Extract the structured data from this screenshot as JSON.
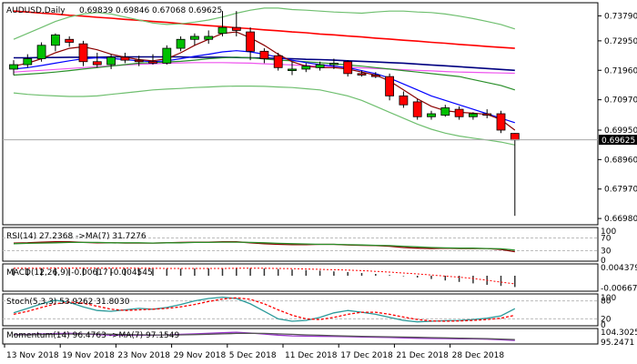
{
  "chart_data": {
    "type": "candlestick",
    "title": "AUDUSD,Daily",
    "ohlc_header": {
      "open": "0.69839",
      "high": "0.69846",
      "low": "0.67068",
      "close": "0.69625"
    },
    "price_axis": {
      "ticks": [
        "0.73790",
        "0.72950",
        "0.71960",
        "0.70970",
        "0.69950",
        "0.68960",
        "0.67970",
        "0.66980"
      ],
      "current_price": "0.69625",
      "ylim": [
        0.668,
        0.742
      ]
    },
    "x_labels": [
      "13 Nov 2018",
      "19 Nov 2018",
      "23 Nov 2018",
      "29 Nov 2018",
      "5 Dec 2018",
      "11 Dec 2018",
      "17 Dec 2018",
      "21 Dec 2018",
      "28 Dec 2018"
    ],
    "candles": [
      {
        "o": 0.72,
        "h": 0.723,
        "l": 0.718,
        "c": 0.7215
      },
      {
        "o": 0.7215,
        "h": 0.725,
        "l": 0.7205,
        "c": 0.7235
      },
      {
        "o": 0.7235,
        "h": 0.729,
        "l": 0.7225,
        "c": 0.728
      },
      {
        "o": 0.728,
        "h": 0.732,
        "l": 0.726,
        "c": 0.7315
      },
      {
        "o": 0.73,
        "h": 0.731,
        "l": 0.7275,
        "c": 0.729
      },
      {
        "o": 0.7285,
        "h": 0.7295,
        "l": 0.721,
        "c": 0.7225
      },
      {
        "o": 0.7225,
        "h": 0.7255,
        "l": 0.7205,
        "c": 0.7215
      },
      {
        "o": 0.7215,
        "h": 0.725,
        "l": 0.72,
        "c": 0.724
      },
      {
        "o": 0.724,
        "h": 0.7255,
        "l": 0.722,
        "c": 0.723
      },
      {
        "o": 0.723,
        "h": 0.7245,
        "l": 0.721,
        "c": 0.7225
      },
      {
        "o": 0.7225,
        "h": 0.725,
        "l": 0.7215,
        "c": 0.722
      },
      {
        "o": 0.722,
        "h": 0.728,
        "l": 0.7215,
        "c": 0.727
      },
      {
        "o": 0.727,
        "h": 0.731,
        "l": 0.726,
        "c": 0.73
      },
      {
        "o": 0.73,
        "h": 0.732,
        "l": 0.728,
        "c": 0.731
      },
      {
        "o": 0.73,
        "h": 0.733,
        "l": 0.7285,
        "c": 0.731
      },
      {
        "o": 0.732,
        "h": 0.7395,
        "l": 0.731,
        "c": 0.734
      },
      {
        "o": 0.734,
        "h": 0.7395,
        "l": 0.731,
        "c": 0.733
      },
      {
        "o": 0.7325,
        "h": 0.734,
        "l": 0.723,
        "c": 0.726
      },
      {
        "o": 0.726,
        "h": 0.727,
        "l": 0.722,
        "c": 0.7235
      },
      {
        "o": 0.7245,
        "h": 0.7255,
        "l": 0.7195,
        "c": 0.7205
      },
      {
        "o": 0.7195,
        "h": 0.7225,
        "l": 0.718,
        "c": 0.72
      },
      {
        "o": 0.72,
        "h": 0.722,
        "l": 0.719,
        "c": 0.721
      },
      {
        "o": 0.7205,
        "h": 0.7225,
        "l": 0.7195,
        "c": 0.7215
      },
      {
        "o": 0.7215,
        "h": 0.7235,
        "l": 0.72,
        "c": 0.722
      },
      {
        "o": 0.7225,
        "h": 0.723,
        "l": 0.7175,
        "c": 0.7185
      },
      {
        "o": 0.7185,
        "h": 0.7195,
        "l": 0.7175,
        "c": 0.718
      },
      {
        "o": 0.718,
        "h": 0.719,
        "l": 0.717,
        "c": 0.7175
      },
      {
        "o": 0.7175,
        "h": 0.7185,
        "l": 0.7095,
        "c": 0.711
      },
      {
        "o": 0.711,
        "h": 0.7125,
        "l": 0.707,
        "c": 0.708
      },
      {
        "o": 0.709,
        "h": 0.71,
        "l": 0.703,
        "c": 0.704
      },
      {
        "o": 0.704,
        "h": 0.706,
        "l": 0.703,
        "c": 0.705
      },
      {
        "o": 0.7045,
        "h": 0.708,
        "l": 0.704,
        "c": 0.707
      },
      {
        "o": 0.7065,
        "h": 0.7075,
        "l": 0.703,
        "c": 0.704
      },
      {
        "o": 0.704,
        "h": 0.7055,
        "l": 0.703,
        "c": 0.705
      },
      {
        "o": 0.705,
        "h": 0.7065,
        "l": 0.7035,
        "c": 0.7045
      },
      {
        "o": 0.705,
        "h": 0.706,
        "l": 0.6985,
        "c": 0.6995
      },
      {
        "o": 0.6984,
        "h": 0.6985,
        "l": 0.6707,
        "c": 0.6962
      }
    ],
    "overlays": [
      {
        "color": "#ff0000",
        "values": [
          0.7395,
          0.7392,
          0.7388,
          0.7385,
          0.7381,
          0.7378,
          0.7374,
          0.7371,
          0.7367,
          0.7364,
          0.736,
          0.7357,
          0.7353,
          0.735,
          0.7346,
          0.7343,
          0.7339,
          0.7336,
          0.7332,
          0.7329,
          0.7325,
          0.7322,
          0.7318,
          0.7315,
          0.7311,
          0.7308,
          0.7304,
          0.7301,
          0.7297,
          0.7294,
          0.729,
          0.7287,
          0.7283,
          0.728,
          0.7276,
          0.7273,
          0.727
        ]
      },
      {
        "color": "#000080",
        "values": [
          0.7238,
          0.7238,
          0.7239,
          0.7239,
          0.724,
          0.724,
          0.724,
          0.7241,
          0.7241,
          0.7241,
          0.7241,
          0.7241,
          0.7241,
          0.724,
          0.724,
          0.724,
          0.7239,
          0.7238,
          0.7237,
          0.7236,
          0.7235,
          0.7233,
          0.7232,
          0.723,
          0.7228,
          0.7226,
          0.7224,
          0.7222,
          0.722,
          0.7217,
          0.7214,
          0.7211,
          0.7208,
          0.7205,
          0.7202,
          0.7199,
          0.7196
        ]
      },
      {
        "color": "#ee55ee",
        "values": [
          0.719,
          0.7193,
          0.7196,
          0.7199,
          0.7202,
          0.7205,
          0.7208,
          0.7211,
          0.7214,
          0.7216,
          0.7218,
          0.722,
          0.7221,
          0.7222,
          0.7222,
          0.7222,
          0.7221,
          0.722,
          0.7218,
          0.7216,
          0.7214,
          0.7212,
          0.721,
          0.7208,
          0.7206,
          0.7204,
          0.7202,
          0.72,
          0.7198,
          0.7196,
          0.7194,
          0.7192,
          0.719,
          0.7189,
          0.7188,
          0.7187,
          0.7186
        ]
      },
      {
        "color": "#2a8f2a",
        "values": [
          0.718,
          0.7183,
          0.7186,
          0.719,
          0.7195,
          0.72,
          0.7205,
          0.721,
          0.7215,
          0.722,
          0.7222,
          0.7224,
          0.7226,
          0.723,
          0.7235,
          0.7238,
          0.724,
          0.7238,
          0.7234,
          0.723,
          0.7228,
          0.7225,
          0.7222,
          0.7218,
          0.7214,
          0.721,
          0.7205,
          0.72,
          0.7195,
          0.719,
          0.7185,
          0.718,
          0.7175,
          0.7165,
          0.7155,
          0.7145,
          0.713
        ]
      },
      {
        "color": "#0000ff",
        "values": [
          0.72,
          0.7205,
          0.7212,
          0.722,
          0.7228,
          0.7235,
          0.7238,
          0.7236,
          0.7232,
          0.7228,
          0.7225,
          0.7228,
          0.7235,
          0.7243,
          0.725,
          0.7258,
          0.7262,
          0.7258,
          0.725,
          0.724,
          0.723,
          0.7222,
          0.7215,
          0.721,
          0.7205,
          0.7195,
          0.7185,
          0.717,
          0.715,
          0.713,
          0.711,
          0.7095,
          0.708,
          0.7065,
          0.705,
          0.7035,
          0.702
        ]
      },
      {
        "color": "#8b0000",
        "values": [
          0.721,
          0.722,
          0.7235,
          0.7255,
          0.727,
          0.7275,
          0.7265,
          0.725,
          0.724,
          0.7232,
          0.7228,
          0.7235,
          0.7255,
          0.728,
          0.73,
          0.732,
          0.7325,
          0.7305,
          0.728,
          0.725,
          0.7225,
          0.721,
          0.7205,
          0.7205,
          0.72,
          0.719,
          0.718,
          0.716,
          0.713,
          0.71,
          0.7075,
          0.706,
          0.7055,
          0.7052,
          0.7048,
          0.703,
          0.6995
        ]
      },
      {
        "color": "#6fbf6f",
        "values": [
          0.73,
          0.732,
          0.734,
          0.736,
          0.7375,
          0.7385,
          0.739,
          0.7385,
          0.7375,
          0.7365,
          0.7355,
          0.735,
          0.7352,
          0.7358,
          0.7365,
          0.7375,
          0.7388,
          0.7398,
          0.7405,
          0.7405,
          0.74,
          0.7398,
          0.7395,
          0.7392,
          0.739,
          0.7388,
          0.7392,
          0.7395,
          0.7395,
          0.7392,
          0.739,
          0.7385,
          0.7378,
          0.737,
          0.736,
          0.735,
          0.7335
        ]
      },
      {
        "color": "#6fbf6f",
        "values": [
          0.712,
          0.7115,
          0.7112,
          0.711,
          0.7108,
          0.7108,
          0.711,
          0.7115,
          0.712,
          0.7125,
          0.713,
          0.7133,
          0.7135,
          0.7138,
          0.714,
          0.7142,
          0.7143,
          0.7143,
          0.7142,
          0.714,
          0.7138,
          0.7134,
          0.713,
          0.712,
          0.711,
          0.7095,
          0.7075,
          0.7055,
          0.7035,
          0.7015,
          0.6998,
          0.6985,
          0.6975,
          0.6968,
          0.6962,
          0.6955,
          0.6945
        ]
      }
    ],
    "panels": [
      {
        "label": "RSI(14) 27.2368 ->MA(7) 31.7276",
        "axis_labels": [
          "100",
          "70",
          "30",
          "0"
        ],
        "axis_values": [
          100,
          70,
          30,
          0
        ],
        "levels": [
          70,
          30
        ],
        "ylim": [
          0,
          100
        ],
        "series": [
          {
            "color": "#8b0000",
            "values": [
              54,
              55,
              57,
              58,
              58,
              56,
              55,
              55,
              54,
              54,
              54,
              55,
              56,
              57,
              57,
              58,
              58,
              55,
              52,
              50,
              49,
              49,
              50,
              50,
              48,
              47,
              46,
              44,
              40,
              38,
              37,
              38,
              37,
              37,
              37,
              34,
              27
            ]
          },
          {
            "color": "#2a8f2a",
            "values": [
              52,
              53,
              54,
              55,
              56,
              56,
              56,
              55,
              55,
              55,
              54,
              55,
              55,
              56,
              56,
              57,
              57,
              56,
              55,
              53,
              52,
              51,
              50,
              50,
              49,
              48,
              47,
              46,
              44,
              42,
              40,
              39,
              38,
              38,
              37,
              36,
              32
            ]
          }
        ]
      },
      {
        "label": "MACD(12,26,9) -0.00617 -0.004545",
        "axis_labels": [
          "0.004379",
          "-0.006673"
        ],
        "axis_values": [
          0.004379,
          -0.006673
        ],
        "ylim": [
          -0.008,
          0.006
        ],
        "bars": [
          0.004,
          0.0041,
          0.0042,
          0.0043,
          0.0043,
          0.0043,
          0.0042,
          0.0041,
          0.004,
          0.0039,
          0.0038,
          0.0038,
          0.0039,
          0.004,
          0.0041,
          0.0042,
          0.0043,
          0.0042,
          0.004,
          0.0037,
          0.0034,
          0.0031,
          0.0028,
          0.0024,
          0.002,
          0.0015,
          0.001,
          0.0004,
          -0.0003,
          -0.001,
          -0.0018,
          -0.0026,
          -0.0034,
          -0.0042,
          -0.005,
          -0.0056,
          -0.0062
        ],
        "signal": [
          0.0041,
          0.0041,
          0.0041,
          0.0042,
          0.0042,
          0.0042,
          0.0042,
          0.0042,
          0.0042,
          0.0041,
          0.0041,
          0.004,
          0.004,
          0.004,
          0.004,
          0.004,
          0.0041,
          0.0041,
          0.0041,
          0.004,
          0.0039,
          0.0037,
          0.0035,
          0.0033,
          0.0031,
          0.0028,
          0.0024,
          0.002,
          0.0015,
          0.001,
          0.0004,
          -0.0002,
          -0.0008,
          -0.0015,
          -0.0025,
          -0.0035,
          -0.0045
        ]
      },
      {
        "label": "Stoch(5,3,3) 53.9262 31.8030",
        "axis_labels": [
          "100",
          "80",
          "20",
          "0"
        ],
        "axis_values": [
          100,
          80,
          20,
          0
        ],
        "levels": [
          80,
          20
        ],
        "ylim": [
          0,
          100
        ],
        "series": [
          {
            "color": "#2a9a9a",
            "values": [
              40,
              55,
              70,
              82,
              75,
              60,
              48,
              45,
              50,
              55,
              52,
              58,
              68,
              80,
              88,
              92,
              88,
              70,
              45,
              20,
              12,
              15,
              25,
              40,
              48,
              42,
              35,
              25,
              15,
              10,
              12,
              14,
              15,
              18,
              22,
              30,
              54
            ]
          },
          {
            "color": "#ff0000",
            "dashed": true,
            "values": [
              35,
              45,
              58,
              70,
              76,
              72,
              62,
              52,
              48,
              50,
              52,
              55,
              60,
              68,
              78,
              86,
              90,
              85,
              70,
              50,
              32,
              20,
              18,
              25,
              35,
              42,
              42,
              35,
              26,
              18,
              13,
              12,
              13,
              15,
              18,
              22,
              32
            ]
          }
        ]
      },
      {
        "label": "Momentum(14) 96.4763 ->MA(7) 97.1549",
        "axis_labels": [
          "104.3025",
          "95.2471"
        ],
        "axis_values": [
          104.3025,
          95.2471
        ],
        "ylim": [
          94.5,
          105
        ],
        "series": [
          {
            "color": "#9932cc",
            "values": [
              101,
              101.2,
              101.5,
              101.8,
              102,
              101.6,
              101,
              100.6,
              100.5,
              100.6,
              100.5,
              100.8,
              101.2,
              101.6,
              102,
              102.4,
              102.8,
              102.2,
              101.4,
              100.6,
              100,
              99.8,
              99.7,
              99.6,
              99.4,
              99.2,
              99,
              98.8,
              98.5,
              98.2,
              98,
              97.9,
              97.8,
              97.7,
              97.5,
              97.1,
              96.5
            ]
          },
          {
            "color": "#555555",
            "values": [
              100.8,
              100.9,
              101,
              101.2,
              101.4,
              101.5,
              101.5,
              101.3,
              101.1,
              100.9,
              100.7,
              100.7,
              100.8,
              101,
              101.3,
              101.6,
              101.9,
              102,
              101.9,
              101.6,
              101.2,
              100.8,
              100.5,
              100.2,
              99.9,
              99.7,
              99.5,
              99.3,
              99.1,
              98.9,
              98.7,
              98.5,
              98.3,
              98.1,
              97.9,
              97.6,
              97.2
            ]
          }
        ]
      }
    ]
  }
}
